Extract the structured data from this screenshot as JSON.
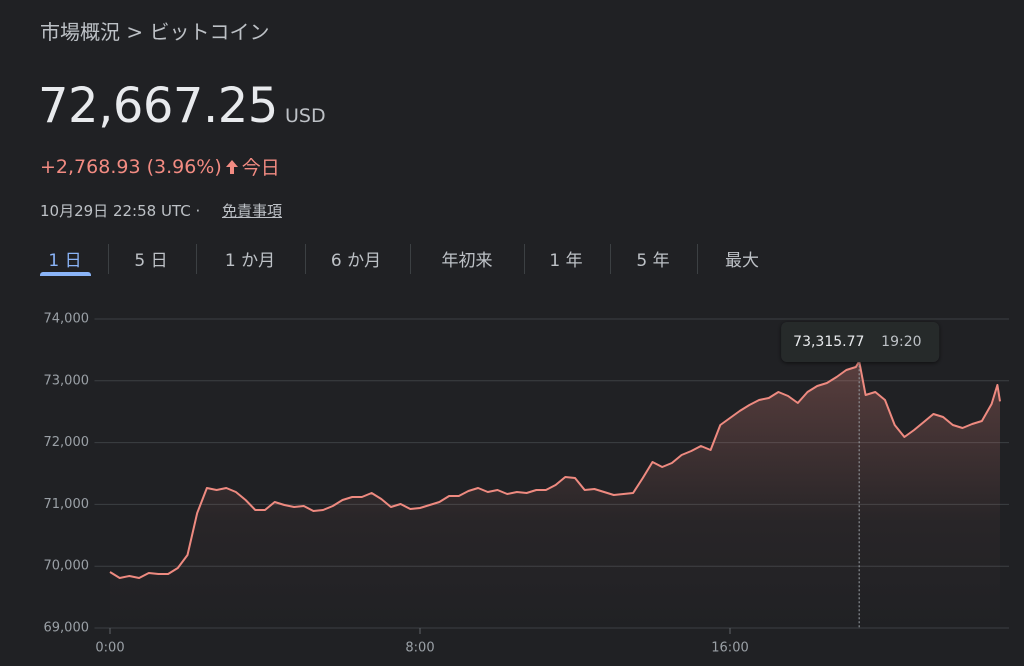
{
  "header": {
    "breadcrumb": "市場概況 > ビットコイン",
    "price": "72,667.25",
    "currency": "USD",
    "change": "+2,768.93 (3.96%)",
    "change_period": "今日",
    "timestamp": "10月29日 22:58 UTC ·",
    "disclaimer": "免責事項"
  },
  "tabs": [
    "1 日",
    "5 日",
    "1 か月",
    "6 か月",
    "年初来",
    "1 年",
    "5 年",
    "最大"
  ],
  "active_tab": 0,
  "chart_data": {
    "type": "line",
    "x": [
      0,
      0.25,
      0.5,
      0.75,
      1,
      1.25,
      1.5,
      1.75,
      2,
      2.25,
      2.5,
      2.75,
      3,
      3.25,
      3.5,
      3.75,
      4,
      4.25,
      4.5,
      4.75,
      5,
      5.25,
      5.5,
      5.75,
      6,
      6.25,
      6.5,
      6.75,
      7,
      7.25,
      7.5,
      7.75,
      8,
      8.25,
      8.5,
      8.75,
      9,
      9.25,
      9.5,
      9.75,
      10,
      10.25,
      10.5,
      10.75,
      11,
      11.25,
      11.5,
      11.75,
      12,
      12.25,
      12.5,
      12.75,
      13,
      13.25,
      13.5,
      13.75,
      14,
      14.25,
      14.5,
      14.75,
      15,
      15.25,
      15.5,
      15.75,
      16,
      16.25,
      16.5,
      16.75,
      17,
      17.25,
      17.5,
      17.75,
      18,
      18.25,
      18.5,
      18.75,
      19,
      19.25,
      19.3333,
      19.5,
      19.75,
      20,
      20.25,
      20.5,
      20.75,
      21,
      21.25,
      21.5,
      21.75,
      22,
      22.25,
      22.5,
      22.75,
      22.9,
      22.967
    ],
    "series": [
      {
        "color": "#ee8a80",
        "values": [
          69906,
          69809,
          69841,
          69809,
          69890,
          69874,
          69874,
          69971,
          70181,
          70861,
          71265,
          71233,
          71265,
          71201,
          71071,
          70909,
          70909,
          71039,
          70990,
          70958,
          70974,
          70893,
          70909,
          70974,
          71071,
          71120,
          71120,
          71184,
          71087,
          70958,
          71006,
          70926,
          70942,
          70990,
          71039,
          71136,
          71136,
          71217,
          71265,
          71201,
          71233,
          71168,
          71201,
          71184,
          71233,
          71233,
          71314,
          71443,
          71427,
          71233,
          71249,
          71201,
          71152,
          71168,
          71184,
          71427,
          71686,
          71605,
          71670,
          71799,
          71864,
          71945,
          71880,
          72285,
          72398,
          72511,
          72608,
          72689,
          72722,
          72819,
          72754,
          72641,
          72819,
          72916,
          72964,
          73061,
          73175,
          73223,
          73315.77,
          72770,
          72819,
          72689,
          72285,
          72091,
          72204,
          72333,
          72463,
          72414,
          72285,
          72236,
          72301,
          72350,
          72625,
          72932,
          72667.25
        ]
      }
    ],
    "xlim": [
      -0.4,
      23.2
    ],
    "xticks": [
      {
        "value": 0,
        "label": "0:00"
      },
      {
        "value": 8,
        "label": "8:00"
      },
      {
        "value": 16,
        "label": "16:00"
      }
    ],
    "ylim": [
      69000,
      74000
    ],
    "yticks": [
      {
        "value": 69000,
        "label": "69,000"
      },
      {
        "value": 70000,
        "label": "70,000"
      },
      {
        "value": 71000,
        "label": "71,000"
      },
      {
        "value": 72000,
        "label": "72,000"
      },
      {
        "value": 73000,
        "label": "73,000"
      },
      {
        "value": 74000,
        "label": "74,000"
      }
    ],
    "grid": true,
    "tooltip": {
      "x": {
        "value": 19.3333,
        "label": "19:20"
      },
      "y": {
        "value": 73315.77,
        "label": "73,315.77"
      }
    }
  }
}
